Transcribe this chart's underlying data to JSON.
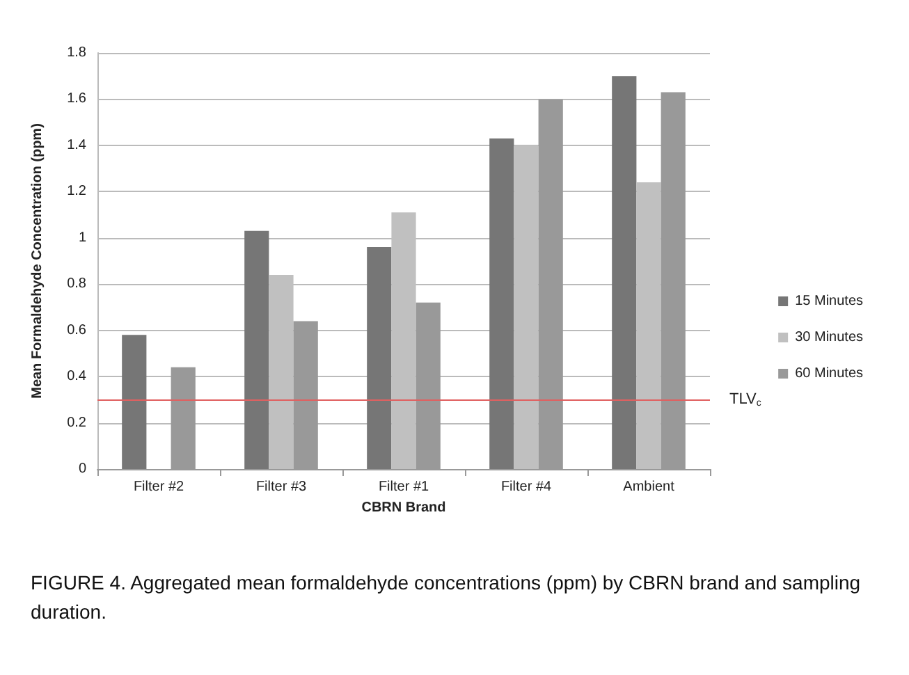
{
  "chart_data": {
    "type": "bar",
    "xlabel": "CBRN Brand",
    "ylabel": "Mean Formaldehyde Concentration (ppm)",
    "categories": [
      "Filter #2",
      "Filter #3",
      "Filter #1",
      "Filter #4",
      "Ambient"
    ],
    "series": [
      {
        "name": "15 Minutes",
        "color": "#767676",
        "values": [
          0.58,
          1.03,
          0.96,
          1.43,
          1.7
        ]
      },
      {
        "name": "30 Minutes",
        "color": "#c0c0c0",
        "values": [
          null,
          0.84,
          1.11,
          1.4,
          1.24
        ]
      },
      {
        "name": "60 Minutes",
        "color": "#999999",
        "values": [
          0.44,
          0.64,
          0.72,
          1.6,
          1.63
        ]
      }
    ],
    "ylim": [
      0,
      1.8
    ],
    "yticks": [
      0,
      0.2,
      0.4,
      0.6,
      0.8,
      1,
      1.2,
      1.4,
      1.6,
      1.8
    ],
    "grid": "y",
    "legend": "right",
    "ref_lines": [
      {
        "axis": "y",
        "value": 0.3,
        "label": "TLV$_{c}$",
        "color": "#e06060"
      }
    ],
    "annotations": [
      "FIGURE 4. Aggregated mean formaldehyde concentrations (ppm) by CBRN brand and sampling duration."
    ]
  }
}
